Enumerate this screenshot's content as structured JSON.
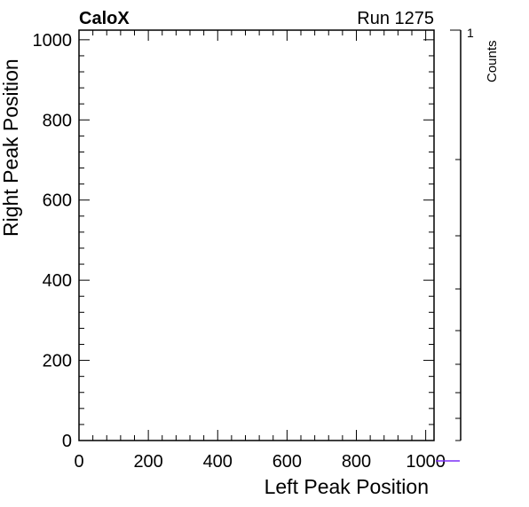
{
  "header": {
    "experiment": "CaloX",
    "run_label": "Run 1275"
  },
  "chart_data": {
    "type": "heatmap",
    "title": "",
    "xlabel": "Left Peak Position",
    "ylabel": "Right Peak Position",
    "xlim": [
      0,
      1024
    ],
    "ylim": [
      0,
      1024
    ],
    "x_ticks": [
      "0",
      "200",
      "400",
      "600",
      "800",
      "1000"
    ],
    "y_ticks": [
      "0",
      "200",
      "400",
      "600",
      "800",
      "1000"
    ],
    "values": [],
    "grid": false,
    "legend": "none",
    "colorbar": {
      "label": "Counts",
      "max_label": "1",
      "scale": "log",
      "color": "#7b2ff7"
    }
  }
}
